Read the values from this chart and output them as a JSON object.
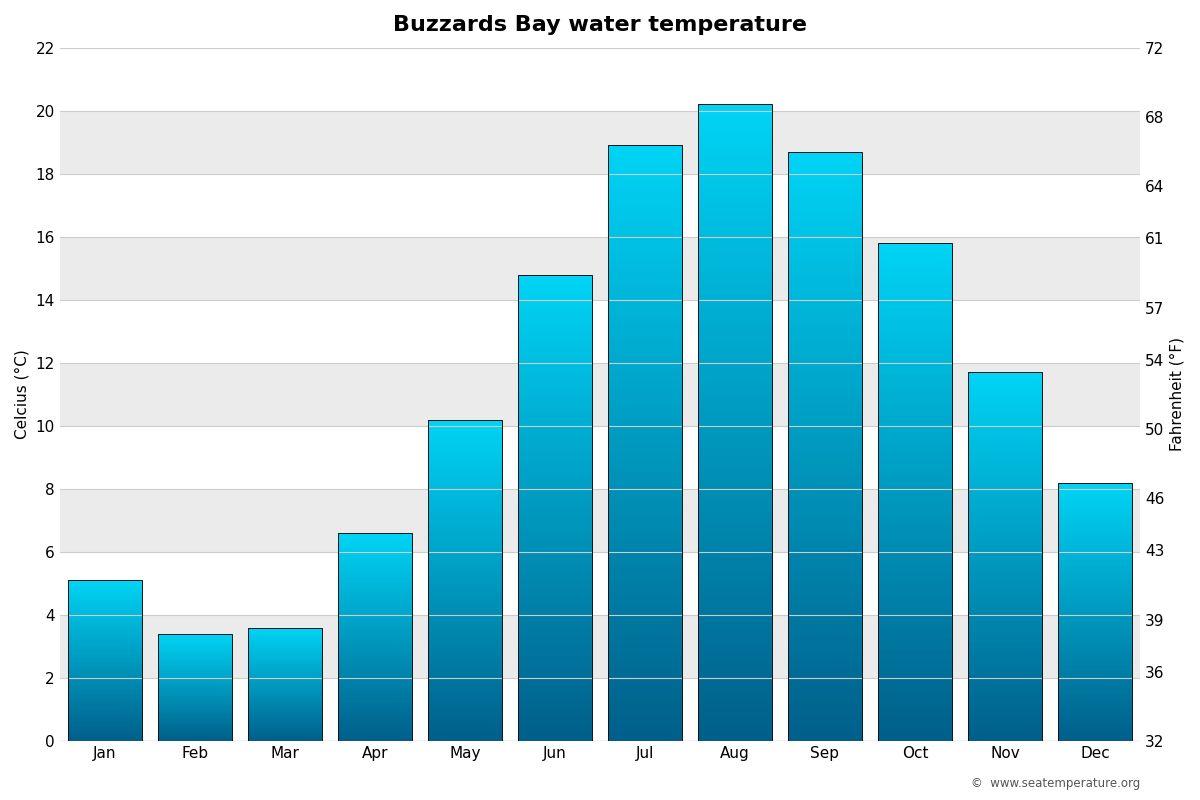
{
  "title": "Buzzards Bay water temperature",
  "months": [
    "Jan",
    "Feb",
    "Mar",
    "Apr",
    "May",
    "Jun",
    "Jul",
    "Aug",
    "Sep",
    "Oct",
    "Nov",
    "Dec"
  ],
  "celsius_values": [
    5.1,
    3.4,
    3.6,
    6.6,
    10.2,
    14.8,
    18.9,
    20.2,
    18.7,
    15.8,
    11.7,
    8.2
  ],
  "ylim_celsius": [
    0,
    22
  ],
  "yticks_celsius": [
    0,
    2,
    4,
    6,
    8,
    10,
    12,
    14,
    16,
    18,
    20,
    22
  ],
  "yticks_fahrenheit": [
    32,
    36,
    39,
    43,
    46,
    50,
    54,
    57,
    61,
    64,
    68,
    72
  ],
  "ylabel_left": "Celcius (°C)",
  "ylabel_right": "Fahrenheit (°F)",
  "background_white": "#ffffff",
  "background_gray": "#ebebeb",
  "bar_color_top": "#00d4f5",
  "bar_color_bottom": "#005f8a",
  "bar_outline_color": "#111111",
  "grid_color": "#cccccc",
  "copyright_text": "©  www.seatemperature.org",
  "title_fontsize": 16,
  "label_fontsize": 11,
  "tick_fontsize": 11,
  "bar_width": 0.82
}
